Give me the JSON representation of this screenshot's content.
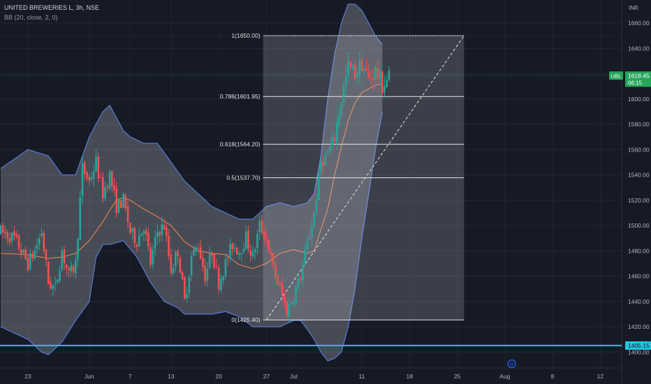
{
  "header": {
    "symbol_line": "UNITED BREWERIES L, 3h, NSE",
    "indicator_line": "BB (20, close, 2, 0)"
  },
  "colors": {
    "background": "#161a25",
    "up": "#26a69a",
    "down": "#ef5350",
    "band_fill": "rgba(200,205,215,0.28)",
    "band_line": "#5b7bd5",
    "basis": "#f2894b",
    "fib_box": "rgba(230,232,236,0.18)",
    "fib_line": "#e8e8e8",
    "cyan_line": "#22c6e0",
    "price_tag": "#26a65b"
  },
  "chart_data": {
    "type": "candlestick",
    "currency": "INR",
    "ylim": [
      1395,
      1675
    ],
    "y_ticks": [
      1400,
      1420,
      1440,
      1460,
      1480,
      1500,
      1520,
      1540,
      1560,
      1580,
      1600,
      1620,
      1640,
      1660
    ],
    "x_ticks": [
      {
        "label": "23",
        "day": 0
      },
      {
        "label": "Jun",
        "day": 9
      },
      {
        "label": "7",
        "day": 15
      },
      {
        "label": "13",
        "day": 21
      },
      {
        "label": "20",
        "day": 28
      },
      {
        "label": "27",
        "day": 35
      },
      {
        "label": "Jul",
        "day": 39
      },
      {
        "label": "11",
        "day": 49
      },
      {
        "label": "18",
        "day": 56
      },
      {
        "label": "25",
        "day": 63
      },
      {
        "label": "Aug",
        "day": 70
      },
      {
        "label": "8",
        "day": 77
      },
      {
        "label": "12",
        "day": 84
      }
    ],
    "close_path": [
      [
        -4,
        1495
      ],
      [
        -2,
        1490
      ],
      [
        0,
        1470
      ],
      [
        1,
        1480
      ],
      [
        2,
        1495
      ],
      [
        3,
        1455
      ],
      [
        4,
        1450
      ],
      [
        5,
        1480
      ],
      [
        6,
        1460
      ],
      [
        7,
        1470
      ],
      [
        8,
        1545
      ],
      [
        9,
        1535
      ],
      [
        10,
        1550
      ],
      [
        11,
        1525
      ],
      [
        12,
        1540
      ],
      [
        13,
        1515
      ],
      [
        14,
        1520
      ],
      [
        15,
        1495
      ],
      [
        16,
        1488
      ],
      [
        17,
        1500
      ],
      [
        18,
        1470
      ],
      [
        19,
        1495
      ],
      [
        20,
        1500
      ],
      [
        21,
        1465
      ],
      [
        22,
        1480
      ],
      [
        23,
        1440
      ],
      [
        24,
        1475
      ],
      [
        25,
        1485
      ],
      [
        26,
        1460
      ],
      [
        27,
        1480
      ],
      [
        28,
        1455
      ],
      [
        29,
        1470
      ],
      [
        30,
        1485
      ],
      [
        31,
        1480
      ],
      [
        32,
        1490
      ],
      [
        33,
        1475
      ],
      [
        34,
        1500
      ],
      [
        35,
        1490
      ],
      [
        36,
        1465
      ],
      [
        37,
        1450
      ],
      [
        38,
        1432
      ],
      [
        39,
        1445
      ],
      [
        40,
        1460
      ],
      [
        41,
        1485
      ],
      [
        42,
        1510
      ],
      [
        43,
        1550
      ],
      [
        44,
        1556
      ],
      [
        45,
        1570
      ],
      [
        46,
        1600
      ],
      [
        47,
        1625
      ],
      [
        48,
        1620
      ],
      [
        49,
        1628
      ],
      [
        50,
        1615
      ],
      [
        51,
        1622
      ],
      [
        52,
        1610
      ],
      [
        53,
        1618
      ]
    ],
    "bb_upper": [
      [
        -4,
        1545
      ],
      [
        0,
        1560
      ],
      [
        3,
        1555
      ],
      [
        5,
        1540
      ],
      [
        7,
        1540
      ],
      [
        9,
        1570
      ],
      [
        11,
        1590
      ],
      [
        12,
        1595
      ],
      [
        14,
        1575
      ],
      [
        15,
        1570
      ],
      [
        17,
        1565
      ],
      [
        19,
        1565
      ],
      [
        21,
        1550
      ],
      [
        23,
        1535
      ],
      [
        25,
        1525
      ],
      [
        27,
        1515
      ],
      [
        29,
        1510
      ],
      [
        31,
        1505
      ],
      [
        33,
        1505
      ],
      [
        35,
        1515
      ],
      [
        37,
        1518
      ],
      [
        39,
        1515
      ],
      [
        41,
        1518
      ],
      [
        42,
        1525
      ],
      [
        43,
        1555
      ],
      [
        44,
        1600
      ],
      [
        45,
        1635
      ],
      [
        46,
        1660
      ],
      [
        47,
        1675
      ],
      [
        48,
        1675
      ],
      [
        49,
        1670
      ],
      [
        50,
        1660
      ],
      [
        51,
        1650
      ],
      [
        52,
        1643
      ]
    ],
    "bb_basis": [
      [
        -4,
        1478
      ],
      [
        0,
        1477
      ],
      [
        3,
        1474
      ],
      [
        5,
        1475
      ],
      [
        7,
        1478
      ],
      [
        9,
        1488
      ],
      [
        11,
        1503
      ],
      [
        12,
        1512
      ],
      [
        13,
        1520
      ],
      [
        14,
        1522
      ],
      [
        15,
        1520
      ],
      [
        17,
        1513
      ],
      [
        19,
        1507
      ],
      [
        21,
        1500
      ],
      [
        23,
        1487
      ],
      [
        25,
        1480
      ],
      [
        27,
        1478
      ],
      [
        29,
        1477
      ],
      [
        31,
        1469
      ],
      [
        33,
        1466
      ],
      [
        35,
        1470
      ],
      [
        37,
        1478
      ],
      [
        39,
        1481
      ],
      [
        41,
        1478
      ],
      [
        42,
        1480
      ],
      [
        43,
        1497
      ],
      [
        44,
        1513
      ],
      [
        45,
        1540
      ],
      [
        46,
        1562
      ],
      [
        47,
        1583
      ],
      [
        48,
        1597
      ],
      [
        49,
        1605
      ],
      [
        50,
        1608
      ],
      [
        51,
        1611
      ],
      [
        52,
        1612
      ]
    ],
    "bb_lower": [
      [
        -4,
        1420
      ],
      [
        0,
        1410
      ],
      [
        2,
        1400
      ],
      [
        3,
        1398
      ],
      [
        5,
        1408
      ],
      [
        7,
        1425
      ],
      [
        9,
        1440
      ],
      [
        10,
        1475
      ],
      [
        11,
        1485
      ],
      [
        12,
        1485
      ],
      [
        14,
        1488
      ],
      [
        16,
        1475
      ],
      [
        18,
        1455
      ],
      [
        20,
        1440
      ],
      [
        22,
        1435
      ],
      [
        23,
        1430
      ],
      [
        25,
        1430
      ],
      [
        27,
        1430
      ],
      [
        29,
        1432
      ],
      [
        31,
        1428
      ],
      [
        33,
        1420
      ],
      [
        35,
        1420
      ],
      [
        37,
        1420
      ],
      [
        39,
        1425
      ],
      [
        40,
        1425
      ],
      [
        41,
        1418
      ],
      [
        42,
        1410
      ],
      [
        43,
        1400
      ],
      [
        44,
        1393
      ],
      [
        45,
        1395
      ],
      [
        46,
        1400
      ],
      [
        47,
        1420
      ],
      [
        48,
        1450
      ],
      [
        49,
        1490
      ],
      [
        50,
        1525
      ],
      [
        51,
        1560
      ],
      [
        52,
        1590
      ]
    ],
    "fibonacci": {
      "start_day": 34.5,
      "end_day": 64,
      "levels": [
        {
          "label": "1(1650.00)",
          "value": 1650.0
        },
        {
          "label": "0.786(1601.95)",
          "value": 1601.95
        },
        {
          "label": "0.618(1564.20)",
          "value": 1564.2
        },
        {
          "label": "0.5(1537.70)",
          "value": 1537.7
        },
        {
          "label": "0(1425.40)",
          "value": 1425.4
        }
      ]
    },
    "trend_line": {
      "from": [
        35,
        1425.4
      ],
      "to": [
        64,
        1650
      ]
    },
    "horizontal_line": {
      "value": 1405.15
    },
    "price_marker": {
      "ticker": "UBL",
      "price": "1618.45",
      "countdown": "06:15",
      "value": 1618.45
    },
    "cyan_tag": "1405.15",
    "currency_label": "INR",
    "event_badge": {
      "label": "D",
      "day": 71
    }
  }
}
